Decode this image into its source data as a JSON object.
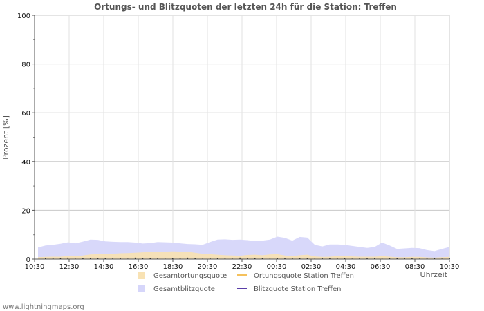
{
  "chart_data": {
    "type": "area",
    "title": "Ortungs- und Blitzquoten der letzten 24h für die Station: Treffen",
    "ylabel": "Prozent   [%]",
    "xlabel": "Uhrzeit",
    "ylim": [
      0,
      100
    ],
    "yticks": [
      "0",
      "20",
      "40",
      "60",
      "80",
      "100"
    ],
    "xticks": [
      "10:30",
      "12:30",
      "14:30",
      "16:30",
      "18:30",
      "20:30",
      "22:30",
      "00:30",
      "02:30",
      "04:30",
      "06:30",
      "08:30",
      "10:30"
    ],
    "grid": true,
    "series": [
      {
        "name": "Gesamtblitzquote",
        "color": "#d6d6fa",
        "values": [
          4.8,
          5.6,
          5.9,
          6.3,
          6.9,
          6.5,
          7.2,
          8.0,
          7.9,
          7.3,
          7.1,
          7.0,
          7.0,
          6.8,
          6.4,
          6.6,
          7.0,
          6.9,
          6.8,
          6.5,
          6.2,
          6.1,
          5.9,
          7.0,
          8.0,
          8.1,
          7.9,
          8.0,
          7.8,
          7.4,
          7.6,
          8.0,
          9.2,
          8.7,
          7.6,
          9.1,
          8.8,
          5.9,
          5.2,
          6.0,
          6.0,
          5.9,
          5.4,
          5.0,
          4.6,
          5.0,
          6.8,
          5.6,
          4.2,
          4.4,
          4.6,
          4.5,
          3.7,
          3.3,
          4.2,
          5.0
        ]
      },
      {
        "name": "Gesamtortungsquote",
        "color": "#f8e2b4",
        "values": [
          0.8,
          0.9,
          1.0,
          1.0,
          1.2,
          1.1,
          1.5,
          1.9,
          2.0,
          2.1,
          2.2,
          2.4,
          2.5,
          2.6,
          2.8,
          2.9,
          3.0,
          3.1,
          3.2,
          3.1,
          3.0,
          2.6,
          2.2,
          2.0,
          1.8,
          1.6,
          1.5,
          1.4,
          1.7,
          1.8,
          1.6,
          1.9,
          2.0,
          1.5,
          1.2,
          1.6,
          1.8,
          1.1,
          0.9,
          1.0,
          1.2,
          1.2,
          1.1,
          1.0,
          1.0,
          1.0,
          1.2,
          1.0,
          0.8,
          0.8,
          0.9,
          0.9,
          0.7,
          0.6,
          0.8,
          0.9
        ]
      },
      {
        "name": "Ortungsquote Station Treffen",
        "color": "#f5c15c",
        "values": []
      },
      {
        "name": "Blitzquote Station Treffen",
        "color": "#5a3ea8",
        "values": []
      }
    ],
    "bars": {
      "color": "#111111",
      "values": [
        0,
        0.5,
        0.4,
        0.3,
        0.6,
        0.2,
        0.5,
        0.3,
        0.4,
        0.3,
        0.5,
        0.3,
        0.2,
        0.6,
        0.4,
        0.3,
        0.5,
        0.2,
        0.4,
        0.3,
        0.6,
        0.3,
        0.2,
        0.5,
        0.4,
        0.3,
        0.2,
        0.6,
        0.3,
        0.4,
        0.5,
        0.2,
        0.4,
        0.3,
        0.5,
        0.3,
        0.4,
        0.2,
        0.5,
        0.3,
        0.4,
        0.3,
        0.2,
        0.5,
        0.3,
        0.4,
        0.2,
        0.3,
        0.5,
        0.3,
        0.4,
        0.2,
        0.3,
        0.4,
        0.2,
        0.3
      ]
    }
  },
  "legend": [
    {
      "label": "Gesamtortungsquote",
      "kind": "box",
      "color": "#f8e2b4"
    },
    {
      "label": "Ortungsquote Station Treffen",
      "kind": "line",
      "color": "#f5c15c"
    },
    {
      "label": "Gesamtblitzquote",
      "kind": "box",
      "color": "#d6d6fa"
    },
    {
      "label": "Blitzquote Station Treffen",
      "kind": "line",
      "color": "#5a3ea8"
    }
  ],
  "footer": "www.lightningmaps.org"
}
